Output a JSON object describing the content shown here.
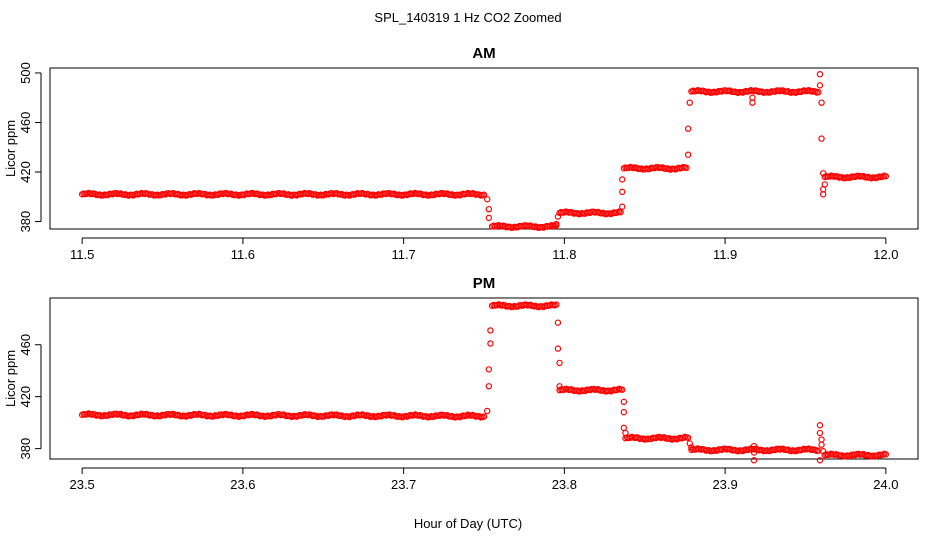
{
  "figure": {
    "title": "SPL_140319  1 Hz CO2 Zoomed",
    "xlabel": "Hour of Day (UTC)"
  },
  "chart_data": [
    {
      "type": "scatter",
      "title": "AM",
      "xlabel": "",
      "ylabel": "Licor ppm",
      "xlim": [
        11.48,
        12.02
      ],
      "ylim": [
        374,
        504
      ],
      "xticks": [
        "11.5",
        "11.6",
        "11.7",
        "11.8",
        "11.9",
        "12.0"
      ],
      "yticks": [
        "380",
        "420",
        "460",
        "500"
      ],
      "marker": "open-circle",
      "color": "#ff0000",
      "grid": false,
      "series": [
        {
          "segments": [
            {
              "x": [
                11.5,
                11.75
              ],
              "y": [
                402,
                402
              ]
            },
            {
              "x": [
                11.755,
                11.795
              ],
              "y": [
                376,
                376
              ]
            },
            {
              "x": [
                11.797,
                11.835
              ],
              "y": [
                387,
                387
              ]
            },
            {
              "x": [
                11.837,
                11.876
              ],
              "y": [
                423,
                423
              ]
            },
            {
              "x": [
                11.879,
                11.958
              ],
              "y": [
                485,
                485
              ]
            },
            {
              "x": [
                11.962,
                12.0
              ],
              "y": [
                416,
                416
              ]
            }
          ],
          "points": [
            {
              "x": 11.752,
              "y": 398
            },
            {
              "x": 11.753,
              "y": 390
            },
            {
              "x": 11.753,
              "y": 383
            },
            {
              "x": 11.795,
              "y": 378
            },
            {
              "x": 11.796,
              "y": 384
            },
            {
              "x": 11.836,
              "y": 392
            },
            {
              "x": 11.836,
              "y": 404
            },
            {
              "x": 11.836,
              "y": 414
            },
            {
              "x": 11.877,
              "y": 434
            },
            {
              "x": 11.877,
              "y": 455
            },
            {
              "x": 11.878,
              "y": 476
            },
            {
              "x": 11.917,
              "y": 480
            },
            {
              "x": 11.917,
              "y": 476
            },
            {
              "x": 11.959,
              "y": 499
            },
            {
              "x": 11.959,
              "y": 490
            },
            {
              "x": 11.96,
              "y": 476
            },
            {
              "x": 11.96,
              "y": 447
            },
            {
              "x": 11.961,
              "y": 419
            },
            {
              "x": 11.961,
              "y": 406
            },
            {
              "x": 11.961,
              "y": 402
            },
            {
              "x": 11.962,
              "y": 410
            }
          ]
        }
      ]
    },
    {
      "type": "scatter",
      "title": "PM",
      "xlabel": "",
      "ylabel": "Licor ppm",
      "xlim": [
        23.48,
        24.02
      ],
      "ylim": [
        372,
        496
      ],
      "xticks": [
        "23.5",
        "23.6",
        "23.7",
        "23.8",
        "23.9",
        "24.0"
      ],
      "yticks": [
        "380",
        "420",
        "460"
      ],
      "marker": "open-circle",
      "color": "#ff0000",
      "grid": false,
      "series": [
        {
          "segments": [
            {
              "x": [
                23.5,
                23.75
              ],
              "y": [
                406,
                405
              ]
            },
            {
              "x": [
                23.755,
                23.795
              ],
              "y": [
                490,
                490
              ]
            },
            {
              "x": [
                23.797,
                23.836
              ],
              "y": [
                425,
                425
              ]
            },
            {
              "x": [
                23.838,
                23.877
              ],
              "y": [
                388,
                388
              ]
            },
            {
              "x": [
                23.879,
                23.958
              ],
              "y": [
                379,
                379
              ]
            },
            {
              "x": [
                23.962,
                24.0
              ],
              "y": [
                375,
                375
              ]
            }
          ],
          "points": [
            {
              "x": 23.752,
              "y": 409
            },
            {
              "x": 23.753,
              "y": 428
            },
            {
              "x": 23.753,
              "y": 441
            },
            {
              "x": 23.754,
              "y": 461
            },
            {
              "x": 23.754,
              "y": 471
            },
            {
              "x": 23.796,
              "y": 477
            },
            {
              "x": 23.796,
              "y": 457
            },
            {
              "x": 23.797,
              "y": 446
            },
            {
              "x": 23.797,
              "y": 428
            },
            {
              "x": 23.837,
              "y": 416
            },
            {
              "x": 23.837,
              "y": 408
            },
            {
              "x": 23.837,
              "y": 396
            },
            {
              "x": 23.838,
              "y": 392
            },
            {
              "x": 23.878,
              "y": 384
            },
            {
              "x": 23.879,
              "y": 381
            },
            {
              "x": 23.918,
              "y": 382
            },
            {
              "x": 23.918,
              "y": 377
            },
            {
              "x": 23.918,
              "y": 371
            },
            {
              "x": 23.959,
              "y": 398
            },
            {
              "x": 23.959,
              "y": 392
            },
            {
              "x": 23.96,
              "y": 387
            },
            {
              "x": 23.96,
              "y": 383
            },
            {
              "x": 23.959,
              "y": 371
            },
            {
              "x": 23.961,
              "y": 378
            }
          ]
        }
      ]
    }
  ]
}
